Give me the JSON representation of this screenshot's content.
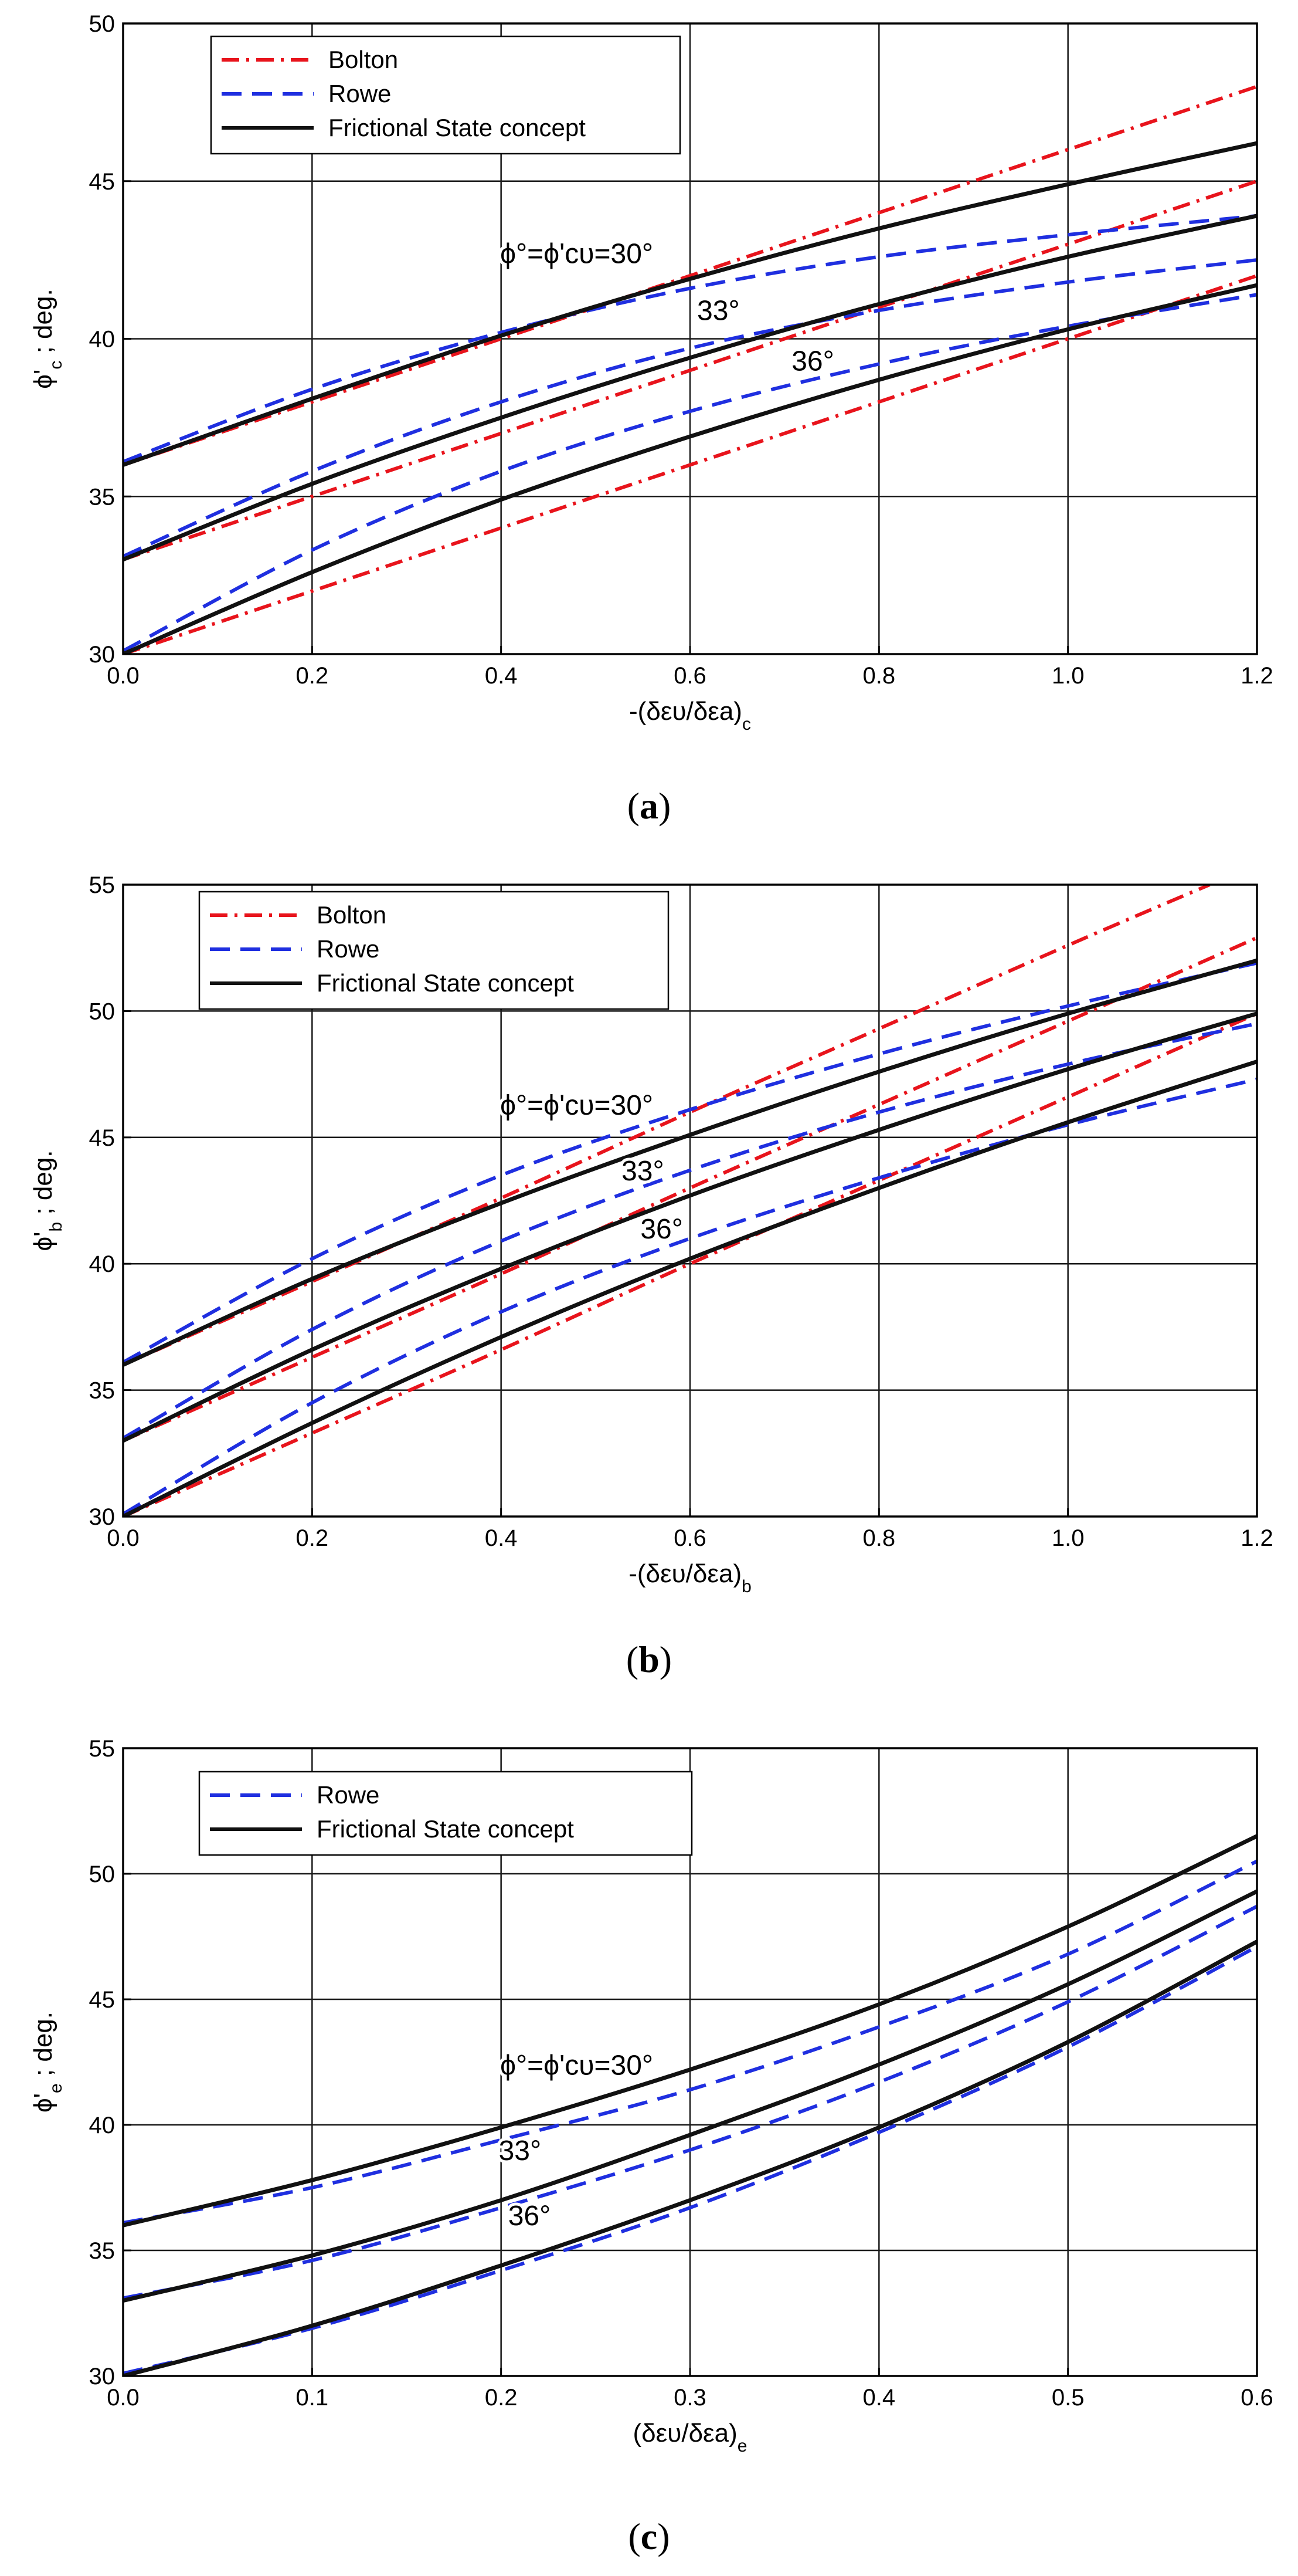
{
  "figure": {
    "captions": [
      "(a)",
      "(b)",
      "(c)"
    ]
  },
  "chart_data": [
    {
      "type": "line",
      "panel": "a",
      "caption": "(a)",
      "xlabel": "-(δευ/δεa)c",
      "ylabel": "ϕ'c ; deg.",
      "xlim": [
        0,
        1.2
      ],
      "ylim": [
        30,
        50
      ],
      "xticks": [
        0.0,
        0.2,
        0.4,
        0.6,
        0.8,
        1.0,
        1.2
      ],
      "xtick_labels": [
        "0.0",
        "0.2",
        "0.4",
        "0.6",
        "0.8",
        "1.0",
        "1.2"
      ],
      "yticks": [
        30,
        35,
        40,
        45,
        50
      ],
      "ytick_labels": [
        "30",
        "35",
        "40",
        "45",
        "50"
      ],
      "grid": true,
      "legend_position": "top-left",
      "legend": [
        "Bolton",
        "Rowe",
        "Frictional State concept"
      ],
      "annotations": [
        {
          "text": "ϕ°=ϕ'cυ=30°",
          "x": 0.48,
          "y": 42.4
        },
        {
          "text": "33°",
          "x": 0.63,
          "y": 40.6
        },
        {
          "text": "36°",
          "x": 0.73,
          "y": 39.0
        }
      ],
      "series": [
        {
          "name": "Bolton",
          "group": "30°",
          "x": [
            0,
            0.2,
            0.4,
            0.6,
            0.8,
            1.0,
            1.2
          ],
          "values": [
            36,
            38,
            40,
            42,
            44,
            46,
            48
          ]
        },
        {
          "name": "Bolton",
          "group": "33°",
          "x": [
            0,
            0.2,
            0.4,
            0.6,
            0.8,
            1.0,
            1.2
          ],
          "values": [
            33,
            35,
            37,
            39,
            41,
            43,
            45
          ]
        },
        {
          "name": "Bolton",
          "group": "36°",
          "x": [
            0,
            0.2,
            0.4,
            0.6,
            0.8,
            1.0,
            1.2
          ],
          "values": [
            30,
            32,
            34,
            36,
            38,
            40,
            42
          ]
        },
        {
          "name": "Rowe",
          "group": "30°",
          "x": [
            0,
            0.2,
            0.4,
            0.6,
            0.8,
            1.0,
            1.2
          ],
          "values": [
            36.1,
            38.4,
            40.2,
            41.6,
            42.6,
            43.3,
            43.9
          ]
        },
        {
          "name": "Rowe",
          "group": "33°",
          "x": [
            0,
            0.2,
            0.4,
            0.6,
            0.8,
            1.0,
            1.2
          ],
          "values": [
            33.1,
            35.8,
            38.0,
            39.7,
            40.9,
            41.8,
            42.5
          ]
        },
        {
          "name": "Rowe",
          "group": "36°",
          "x": [
            0,
            0.2,
            0.4,
            0.6,
            0.8,
            1.0,
            1.2
          ],
          "values": [
            30.1,
            33.3,
            35.8,
            37.7,
            39.2,
            40.4,
            41.4
          ]
        },
        {
          "name": "Frictional State concept",
          "group": "30°",
          "x": [
            0,
            0.2,
            0.4,
            0.6,
            0.8,
            1.0,
            1.2
          ],
          "values": [
            36.0,
            38.1,
            40.1,
            41.9,
            43.5,
            44.9,
            46.2
          ]
        },
        {
          "name": "Frictional State concept",
          "group": "33°",
          "x": [
            0,
            0.2,
            0.4,
            0.6,
            0.8,
            1.0,
            1.2
          ],
          "values": [
            33.0,
            35.4,
            37.5,
            39.4,
            41.1,
            42.6,
            43.9
          ]
        },
        {
          "name": "Frictional State concept",
          "group": "36°",
          "x": [
            0,
            0.2,
            0.4,
            0.6,
            0.8,
            1.0,
            1.2
          ],
          "values": [
            30.0,
            32.6,
            34.9,
            36.9,
            38.7,
            40.3,
            41.7
          ]
        }
      ]
    },
    {
      "type": "line",
      "panel": "b",
      "caption": "(b)",
      "xlabel": "-(δευ/δεa)b",
      "ylabel": "ϕ'b ; deg.",
      "xlim": [
        0,
        1.2
      ],
      "ylim": [
        30,
        55
      ],
      "xticks": [
        0.0,
        0.2,
        0.4,
        0.6,
        0.8,
        1.0,
        1.2
      ],
      "xtick_labels": [
        "0.0",
        "0.2",
        "0.4",
        "0.6",
        "0.8",
        "1.0",
        "1.2"
      ],
      "yticks": [
        30,
        35,
        40,
        45,
        50,
        55
      ],
      "ytick_labels": [
        "30",
        "35",
        "40",
        "45",
        "50",
        "55"
      ],
      "grid": true,
      "legend_position": "top-left",
      "legend": [
        "Bolton",
        "Rowe",
        "Frictional State concept"
      ],
      "annotations": [
        {
          "text": "ϕ°=ϕ'cυ=30°",
          "x": 0.48,
          "y": 45.9
        },
        {
          "text": "33°",
          "x": 0.55,
          "y": 43.3
        },
        {
          "text": "36°",
          "x": 0.57,
          "y": 41.0
        }
      ],
      "series": [
        {
          "name": "Bolton",
          "group": "30°",
          "x": [
            0,
            0.2,
            0.4,
            0.6,
            0.8,
            1.0,
            1.15
          ],
          "values": [
            36,
            39.3,
            42.6,
            46.0,
            49.3,
            52.6,
            55.0
          ]
        },
        {
          "name": "Bolton",
          "group": "33°",
          "x": [
            0,
            0.2,
            0.4,
            0.6,
            0.8,
            1.0,
            1.2
          ],
          "values": [
            33,
            36.3,
            39.6,
            43.0,
            46.3,
            49.6,
            52.9
          ]
        },
        {
          "name": "Bolton",
          "group": "36°",
          "x": [
            0,
            0.2,
            0.4,
            0.6,
            0.8,
            1.0,
            1.2
          ],
          "values": [
            30,
            33.3,
            36.6,
            40.0,
            43.3,
            46.6,
            49.9
          ]
        },
        {
          "name": "Rowe",
          "group": "30°",
          "x": [
            0,
            0.2,
            0.4,
            0.6,
            0.8,
            1.0,
            1.2
          ],
          "values": [
            36.1,
            40.2,
            43.5,
            46.1,
            48.3,
            50.2,
            51.9
          ]
        },
        {
          "name": "Rowe",
          "group": "33°",
          "x": [
            0,
            0.2,
            0.4,
            0.6,
            0.8,
            1.0,
            1.2
          ],
          "values": [
            33.1,
            37.4,
            40.9,
            43.7,
            46.0,
            47.9,
            49.5
          ]
        },
        {
          "name": "Rowe",
          "group": "36°",
          "x": [
            0,
            0.2,
            0.4,
            0.6,
            0.8,
            1.0,
            1.2
          ],
          "values": [
            30.1,
            34.5,
            38.1,
            41.0,
            43.4,
            45.5,
            47.3
          ]
        },
        {
          "name": "Frictional State concept",
          "group": "30°",
          "x": [
            0,
            0.2,
            0.4,
            0.6,
            0.8,
            1.0,
            1.2
          ],
          "values": [
            36.0,
            39.4,
            42.4,
            45.1,
            47.6,
            49.9,
            52.0
          ]
        },
        {
          "name": "Frictional State concept",
          "group": "33°",
          "x": [
            0,
            0.2,
            0.4,
            0.6,
            0.8,
            1.0,
            1.2
          ],
          "values": [
            33.0,
            36.6,
            39.8,
            42.7,
            45.3,
            47.7,
            49.9
          ]
        },
        {
          "name": "Frictional State concept",
          "group": "36°",
          "x": [
            0,
            0.2,
            0.4,
            0.6,
            0.8,
            1.0,
            1.2
          ],
          "values": [
            30.0,
            33.7,
            37.1,
            40.2,
            43.0,
            45.6,
            48.0
          ]
        }
      ]
    },
    {
      "type": "line",
      "panel": "c",
      "caption": "(c)",
      "xlabel": "(δευ/δεa)e",
      "ylabel": "ϕ'e ; deg.",
      "xlim": [
        0,
        0.6
      ],
      "ylim": [
        30,
        55
      ],
      "xticks": [
        0.0,
        0.1,
        0.2,
        0.3,
        0.4,
        0.5,
        0.6
      ],
      "xtick_labels": [
        "0.0",
        "0.1",
        "0.2",
        "0.3",
        "0.4",
        "0.5",
        "0.6"
      ],
      "yticks": [
        30,
        35,
        40,
        45,
        50,
        55
      ],
      "ytick_labels": [
        "30",
        "35",
        "40",
        "45",
        "50",
        "55"
      ],
      "grid": true,
      "legend_position": "top-left",
      "legend": [
        "Rowe",
        "Frictional State concept"
      ],
      "annotations": [
        {
          "text": "ϕ°=ϕ'cυ=30°",
          "x": 0.24,
          "y": 42.0
        },
        {
          "text": "33°",
          "x": 0.21,
          "y": 38.6
        },
        {
          "text": "36°",
          "x": 0.215,
          "y": 36.0
        }
      ],
      "series": [
        {
          "name": "Rowe",
          "group": "30°",
          "x": [
            0,
            0.1,
            0.2,
            0.3,
            0.4,
            0.5,
            0.6
          ],
          "values": [
            36.1,
            37.5,
            39.4,
            41.4,
            43.9,
            46.8,
            50.5
          ]
        },
        {
          "name": "Rowe",
          "group": "33°",
          "x": [
            0,
            0.1,
            0.2,
            0.3,
            0.4,
            0.5,
            0.6
          ],
          "values": [
            33.1,
            34.6,
            36.7,
            39.0,
            41.7,
            44.9,
            48.7
          ]
        },
        {
          "name": "Rowe",
          "group": "36°",
          "x": [
            0,
            0.1,
            0.2,
            0.3,
            0.4,
            0.5,
            0.6
          ],
          "values": [
            30.1,
            31.9,
            34.2,
            36.7,
            39.7,
            43.1,
            47.1
          ]
        },
        {
          "name": "Frictional State concept",
          "group": "30°",
          "x": [
            0,
            0.1,
            0.2,
            0.3,
            0.4,
            0.5,
            0.6
          ],
          "values": [
            36.0,
            37.8,
            39.9,
            42.2,
            44.8,
            47.9,
            51.5
          ]
        },
        {
          "name": "Frictional State concept",
          "group": "33°",
          "x": [
            0,
            0.1,
            0.2,
            0.3,
            0.4,
            0.5,
            0.6
          ],
          "values": [
            33.0,
            34.8,
            37.0,
            39.6,
            42.4,
            45.6,
            49.3
          ]
        },
        {
          "name": "Frictional State concept",
          "group": "36°",
          "x": [
            0,
            0.1,
            0.2,
            0.3,
            0.4,
            0.5,
            0.6
          ],
          "values": [
            30.0,
            32.0,
            34.4,
            37.0,
            39.9,
            43.3,
            47.3
          ]
        }
      ]
    }
  ],
  "styles": {
    "Bolton": {
      "color": "#e8141c",
      "dash": "dashdot"
    },
    "Rowe": {
      "color": "#1f2fe0",
      "dash": "dashed"
    },
    "Frictional State concept": {
      "color": "#111111",
      "dash": "solid"
    },
    "grid_color": "#1a1a1a",
    "axis_color": "#000000"
  }
}
